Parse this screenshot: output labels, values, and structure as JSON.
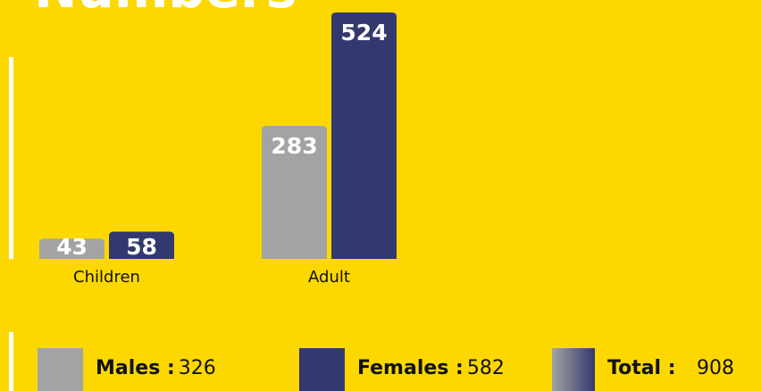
{
  "chart_data": {
    "type": "bar",
    "title": "Numbers",
    "categories": [
      "Children",
      "Adult"
    ],
    "series": [
      {
        "name": "Males :",
        "color": "#a3a3a3",
        "values": [
          43,
          283
        ],
        "total": 326
      },
      {
        "name": "Females :",
        "color": "#33396e",
        "values": [
          58,
          524
        ],
        "total": 582
      }
    ],
    "total": {
      "label": "Total :",
      "value": 908
    }
  }
}
